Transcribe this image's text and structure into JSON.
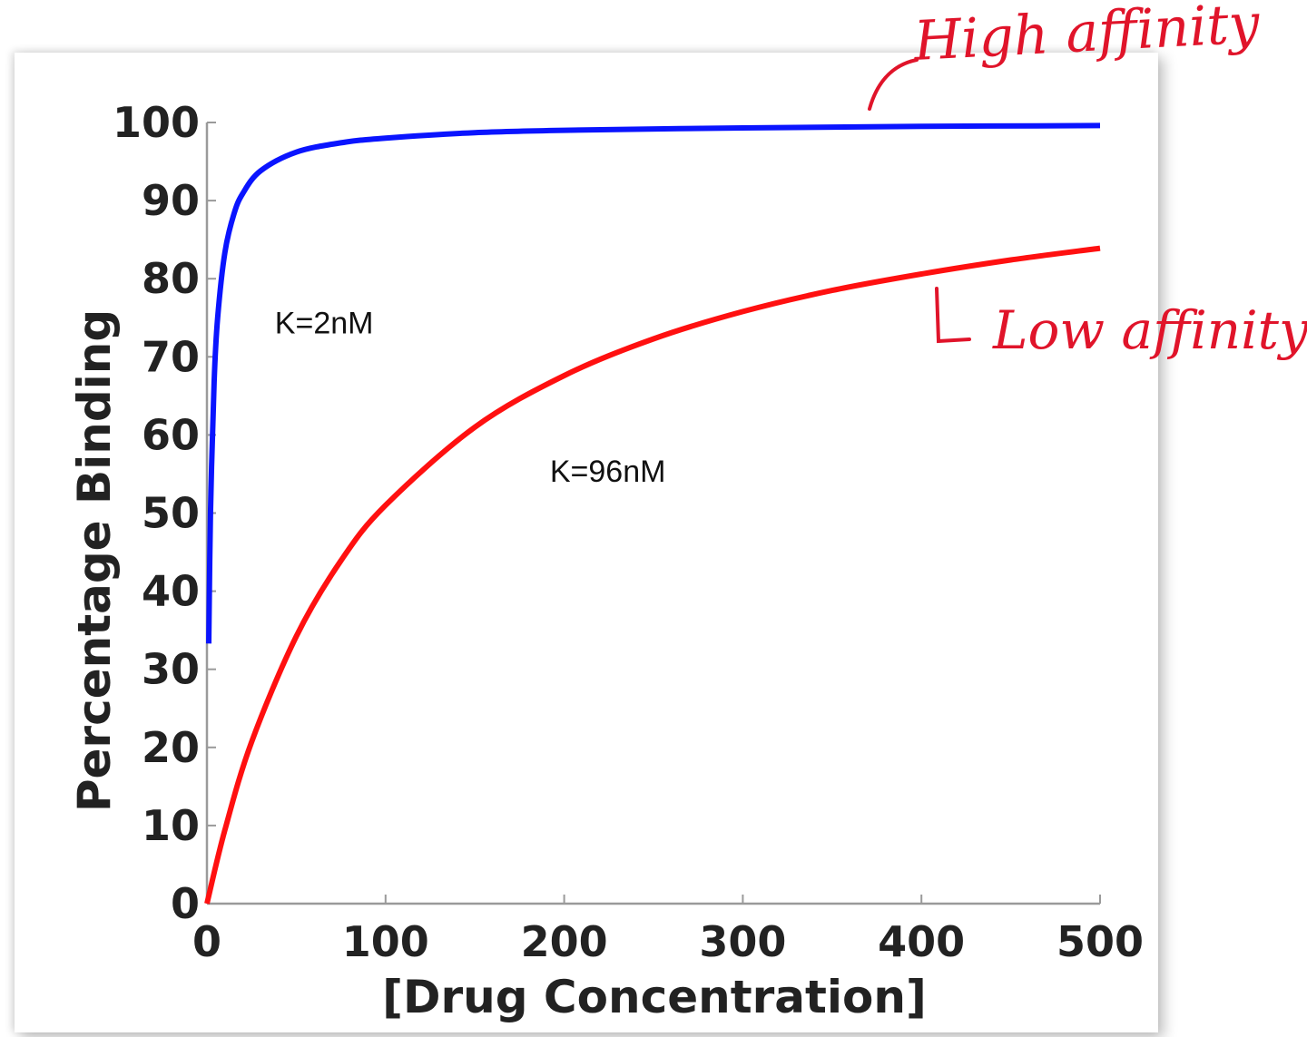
{
  "chart_data": {
    "type": "line",
    "xlabel": "[Drug Concentration]",
    "ylabel": "Percentage Binding",
    "xlim": [
      0,
      500
    ],
    "ylim": [
      0,
      100
    ],
    "xticks": [
      0,
      100,
      200,
      300,
      400,
      500
    ],
    "yticks": [
      0,
      10,
      20,
      30,
      40,
      50,
      60,
      70,
      80,
      90,
      100
    ],
    "grid": false,
    "series": [
      {
        "color": "#0a14ff",
        "x": [
          1,
          2,
          4,
          6,
          10,
          15,
          20,
          30,
          50,
          75,
          100,
          150,
          200,
          300,
          400,
          500
        ],
        "y": [
          33.3,
          50,
          66.7,
          75,
          83.3,
          88.2,
          90.9,
          93.8,
          96.2,
          97.4,
          98,
          98.7,
          99,
          99.3,
          99.5,
          99.6
        ]
      },
      {
        "color": "#ff1010",
        "x": [
          0,
          10,
          25,
          50,
          75,
          100,
          150,
          200,
          250,
          300,
          350,
          400,
          450,
          500
        ],
        "y": [
          0,
          9.4,
          20.7,
          34.2,
          43.9,
          51,
          61,
          67.6,
          72.3,
          75.8,
          78.5,
          80.6,
          82.4,
          83.9
        ]
      }
    ],
    "annotations": [
      {
        "text": "K=2nM",
        "x": 38,
        "y": 73
      },
      {
        "text": "K=96nM",
        "x": 192,
        "y": 54
      }
    ]
  },
  "handwritten_notes": {
    "high": "High affinity",
    "low": "Low affinity"
  }
}
